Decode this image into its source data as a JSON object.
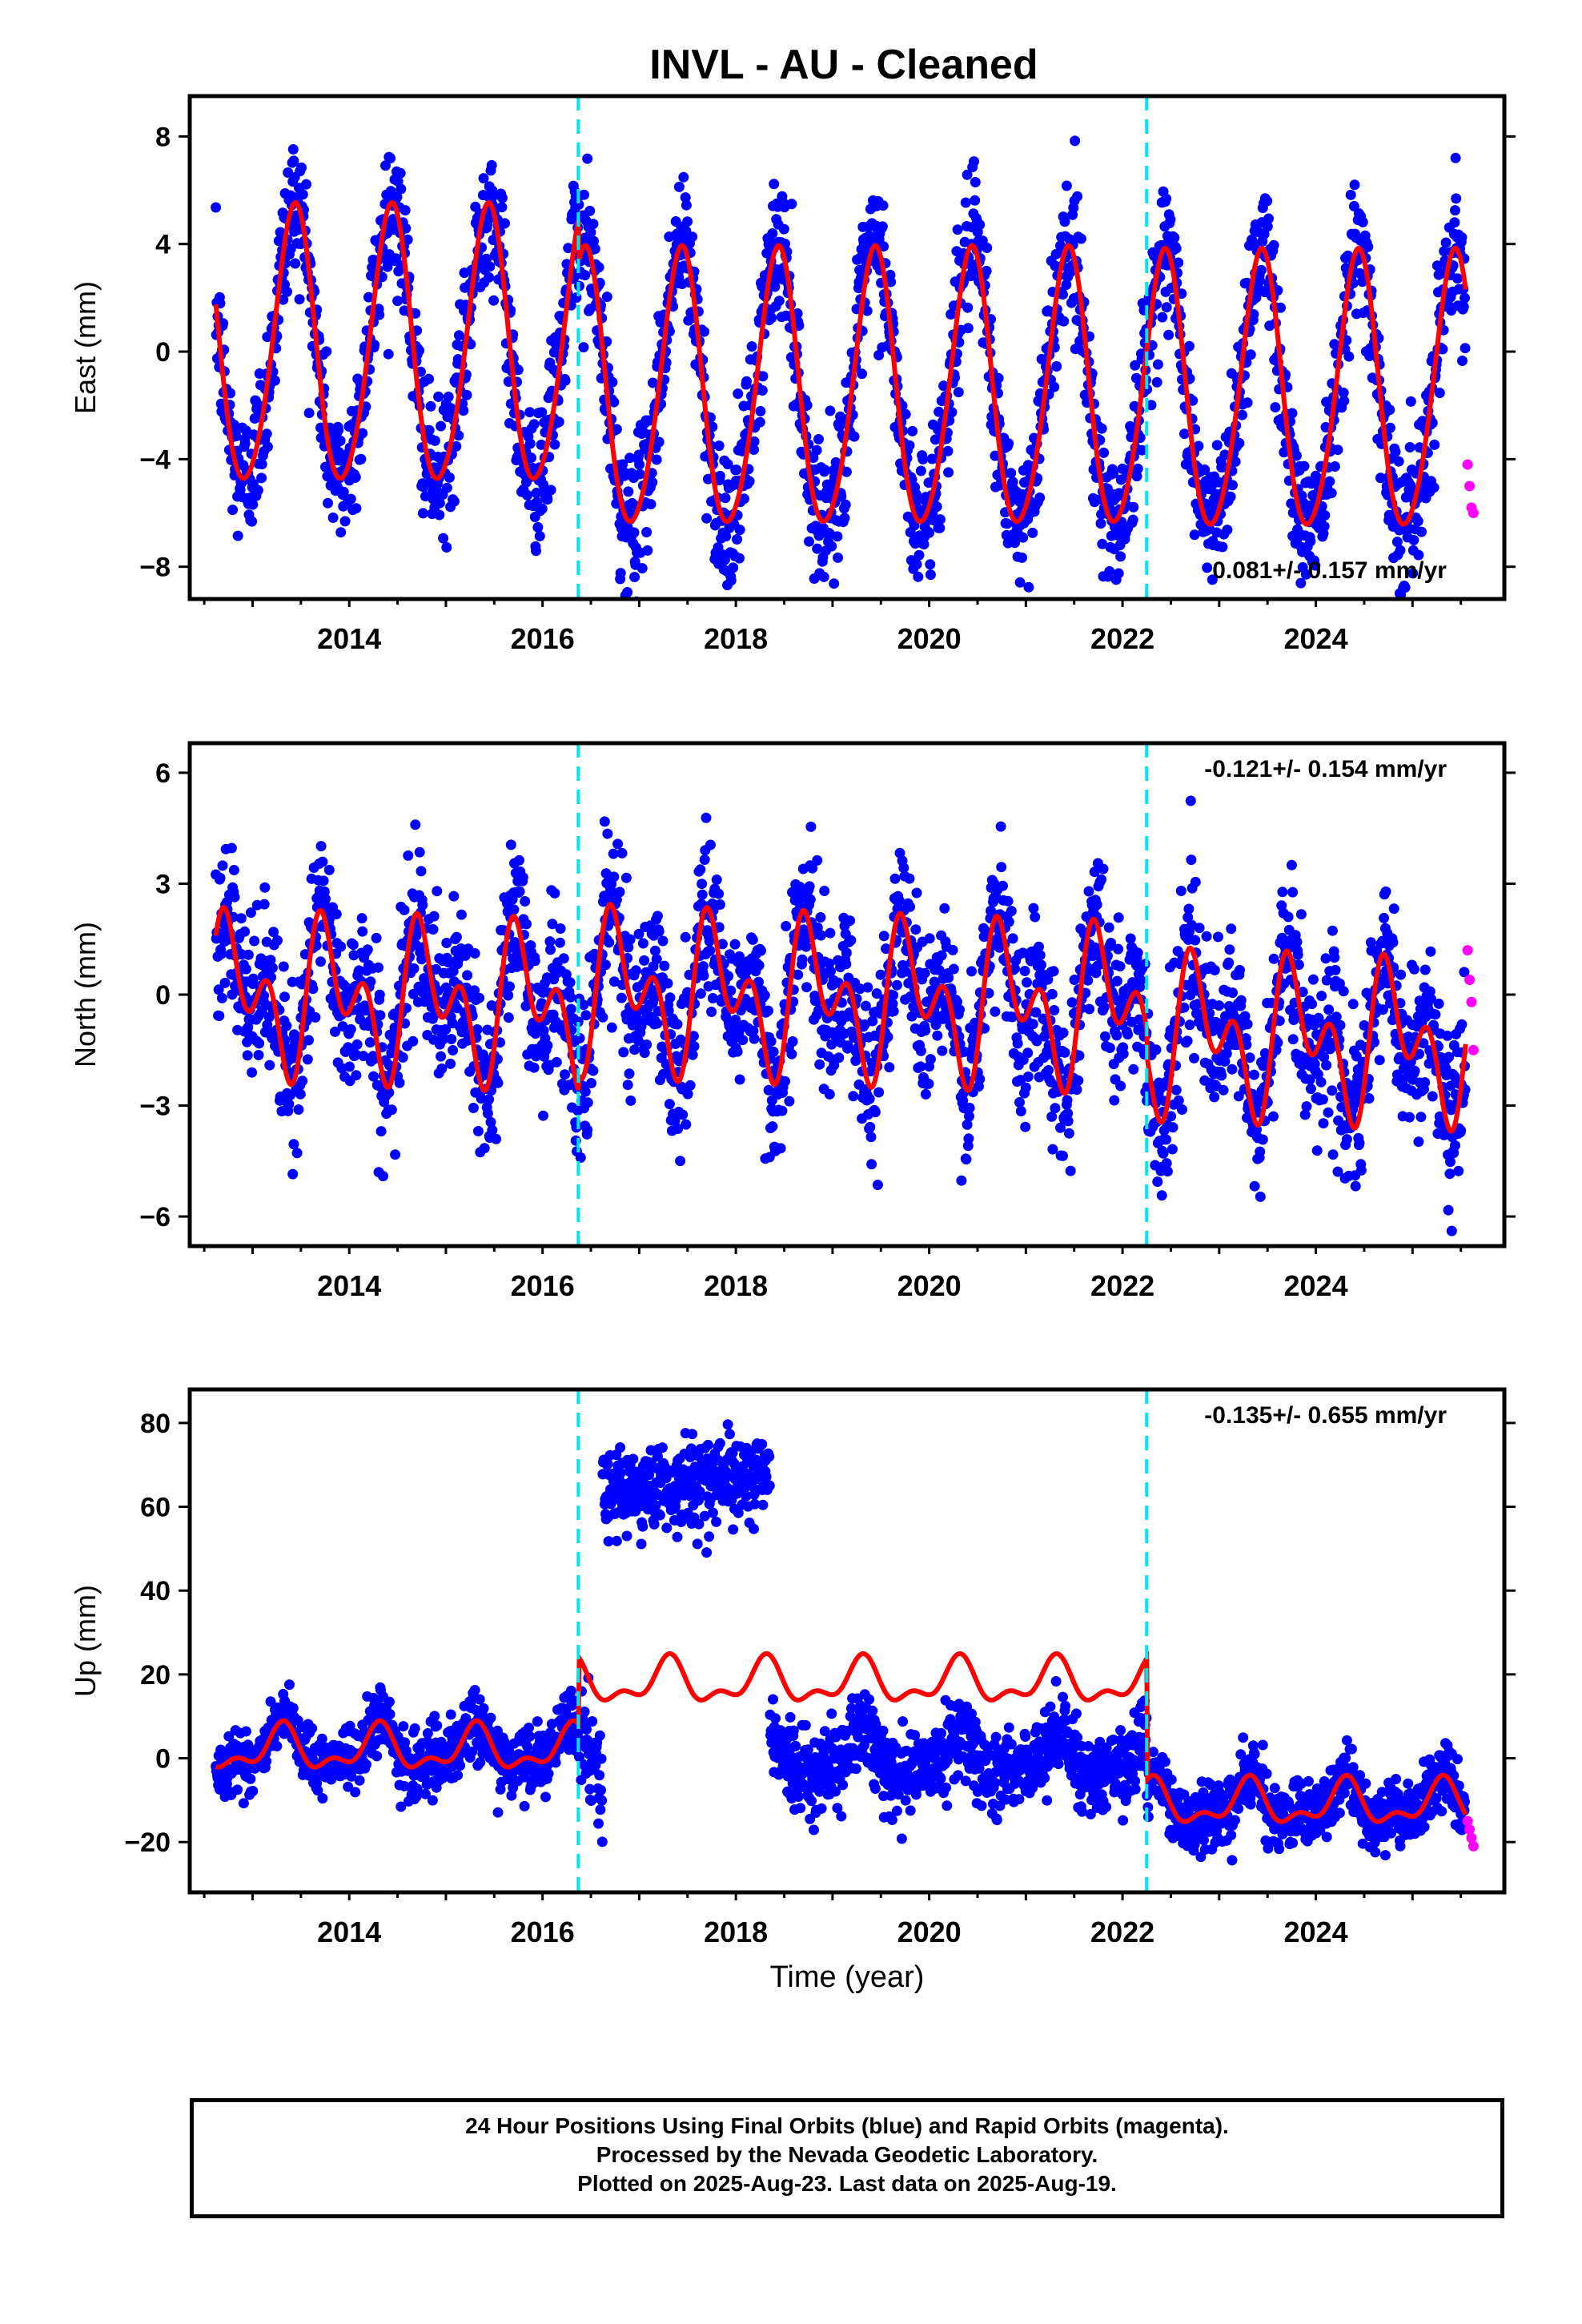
{
  "chart_data": [
    {
      "type": "scatter",
      "title": "INVL  - AU - Cleaned",
      "ylabel": "East (mm)",
      "xlabel": "",
      "xlim": [
        2012.35,
        2025.95
      ],
      "ylim": [
        -9.2,
        9.5
      ],
      "yticks": [
        -8,
        -4,
        0,
        4,
        8
      ],
      "ytick_labels": [
        "−8",
        "−4",
        "0",
        "4",
        "8"
      ],
      "xticks": [
        2014,
        2016,
        2018,
        2020,
        2022,
        2024
      ],
      "xtick_labels": [
        "2014",
        "2016",
        "2018",
        "2020",
        "2022",
        "2024"
      ],
      "rate_label": "0.081+/- 0.157 mm/yr",
      "rate_position": "bottom-right",
      "breaks": [
        2016.37,
        2022.25
      ],
      "offsets": [
        0.0,
        -1.6,
        -1.7
      ],
      "model": {
        "type": "line",
        "color": "#ff0000",
        "annual_amp": 5.1,
        "annual_phase": 0.18,
        "semi_amp": 0.5,
        "semi_phase": 0.35,
        "base": 0.6
      },
      "scatter": {
        "color": "#0000ff",
        "noise_sd": 1.3,
        "count": 2600,
        "start": 2012.62,
        "end": 2025.55
      },
      "rapid": {
        "color": "#ff00ff",
        "x": [
          2025.57,
          2025.59,
          2025.61,
          2025.63
        ],
        "y": [
          -4.2,
          -5.0,
          -5.8,
          -6.0
        ]
      },
      "grid": false
    },
    {
      "type": "scatter",
      "ylabel": "North (mm)",
      "xlabel": "",
      "xlim": [
        2012.35,
        2025.95
      ],
      "ylim": [
        -6.8,
        6.8
      ],
      "yticks": [
        -6,
        -3,
        0,
        3,
        6
      ],
      "ytick_labels": [
        "−6",
        "−3",
        "0",
        "3",
        "6"
      ],
      "xticks": [
        2014,
        2016,
        2018,
        2020,
        2022,
        2024
      ],
      "xtick_labels": [
        "2014",
        "2016",
        "2018",
        "2020",
        "2022",
        "2024"
      ],
      "rate_label": "-0.121+/- 0.154 mm/yr",
      "rate_position": "top-right",
      "breaks": [
        2016.37,
        2022.25
      ],
      "offsets": [
        0.0,
        0.4,
        -0.3
      ],
      "model": {
        "type": "line",
        "color": "#ff0000",
        "annual_amp": 1.4,
        "annual_phase": 0.55,
        "semi_amp": 1.3,
        "semi_phase": 0.05,
        "base": 1.7
      },
      "scatter": {
        "color": "#0000ff",
        "noise_sd": 1.1,
        "count": 2600,
        "start": 2012.62,
        "end": 2025.55
      },
      "rapid": {
        "color": "#ff00ff",
        "x": [
          2025.57,
          2025.59,
          2025.61,
          2025.63
        ],
        "y": [
          1.2,
          0.4,
          -0.2,
          -1.5
        ]
      },
      "grid": false
    },
    {
      "type": "scatter",
      "ylabel": "Up (mm)",
      "xlabel": "Time (year)",
      "xlim": [
        2012.35,
        2025.95
      ],
      "ylim": [
        -32,
        88
      ],
      "yticks": [
        -20,
        0,
        20,
        40,
        60,
        80
      ],
      "ytick_labels": [
        "−20",
        "0",
        "20",
        "40",
        "60",
        "80"
      ],
      "xticks": [
        2014,
        2016,
        2018,
        2020,
        2022,
        2024
      ],
      "xtick_labels": [
        "2014",
        "2016",
        "2018",
        "2020",
        "2022",
        "2024"
      ],
      "rate_label": "-0.135+/- 0.655 mm/yr",
      "rate_position": "top-right",
      "breaks": [
        2016.37,
        2022.25
      ],
      "offsets": [
        2.0,
        18.0,
        -11.0
      ],
      "model": {
        "type": "line",
        "color": "#ff0000",
        "annual_amp": 4.5,
        "annual_phase": 0.05,
        "semi_amp": 2.5,
        "semi_phase": 0.2,
        "base": 0.0
      },
      "scatter": {
        "color": "#0000ff",
        "noise_sd": 3.8,
        "count": 2600,
        "start": 2012.62,
        "end": 2025.55
      },
      "up_segments": [
        {
          "start": 2016.62,
          "end": 2018.35,
          "level": 63,
          "sd": 5
        },
        {
          "start": 2018.35,
          "end": 2022.25,
          "level": 0,
          "sd": 4.5
        }
      ],
      "rapid": {
        "color": "#ff00ff",
        "x": [
          2025.57,
          2025.59,
          2025.61,
          2025.63
        ],
        "y": [
          -15,
          -17,
          -19,
          -21
        ]
      },
      "grid": false
    }
  ],
  "colors": {
    "data": "#0000ff",
    "model": "#ff0000",
    "rapid": "#ff00ff",
    "break_line": "#00e5ee"
  },
  "footer": {
    "line1": "24 Hour Positions Using Final Orbits (blue) and Rapid Orbits (magenta).",
    "line2": "Processed by the Nevada Geodetic Laboratory.",
    "line3": "Plotted on 2025-Aug-23. Last data on 2025-Aug-19."
  }
}
